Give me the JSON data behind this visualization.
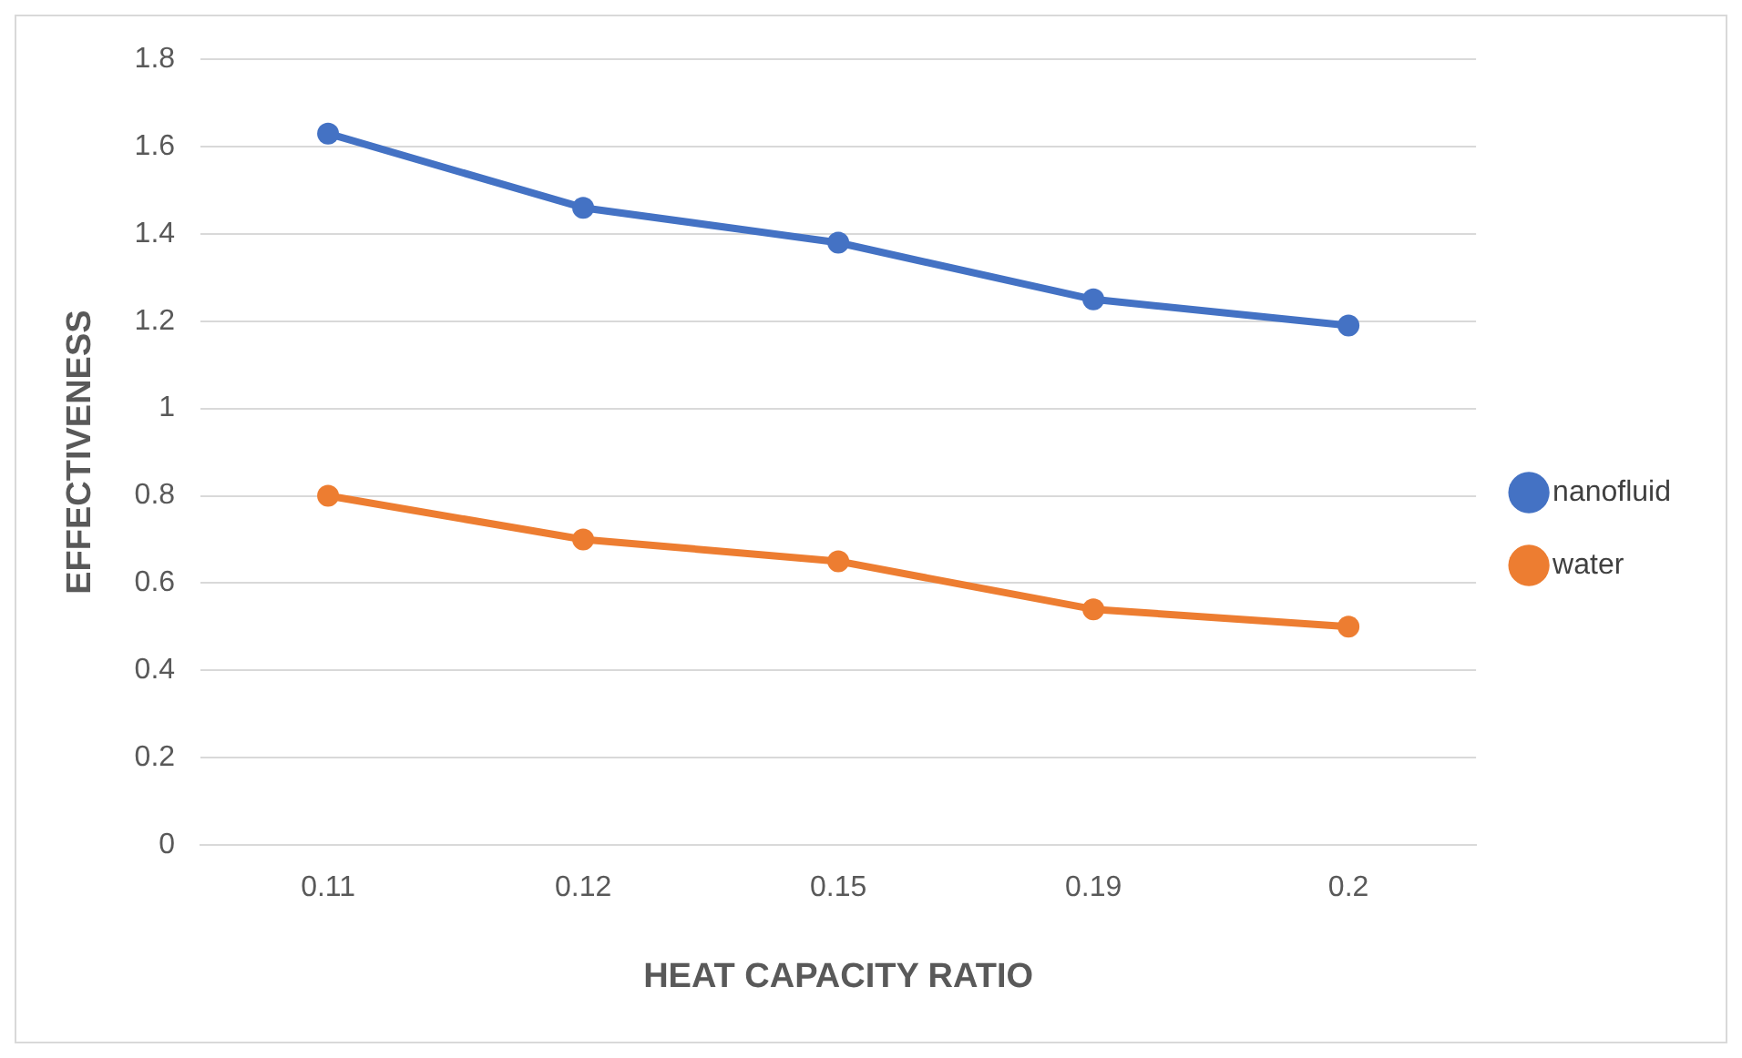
{
  "chart_data": {
    "type": "line",
    "xlabel": "HEAT CAPACITY RATIO",
    "ylabel": "EFFECTIVENESS",
    "categories": [
      "0.11",
      "0.12",
      "0.15",
      "0.19",
      "0.2"
    ],
    "series": [
      {
        "name": "nanofluid",
        "color": "#4472c4",
        "values": [
          1.63,
          1.46,
          1.38,
          1.25,
          1.19
        ]
      },
      {
        "name": "water",
        "color": "#ed7d31",
        "values": [
          0.8,
          0.7,
          0.65,
          0.54,
          0.5
        ]
      }
    ],
    "ylim": [
      0,
      1.8
    ],
    "yticks": [
      0,
      0.2,
      0.4,
      0.6,
      0.8,
      1,
      1.2,
      1.4,
      1.6,
      1.8
    ],
    "grid": "y",
    "legend": "right",
    "marker": "circle",
    "line_style": "solid"
  }
}
